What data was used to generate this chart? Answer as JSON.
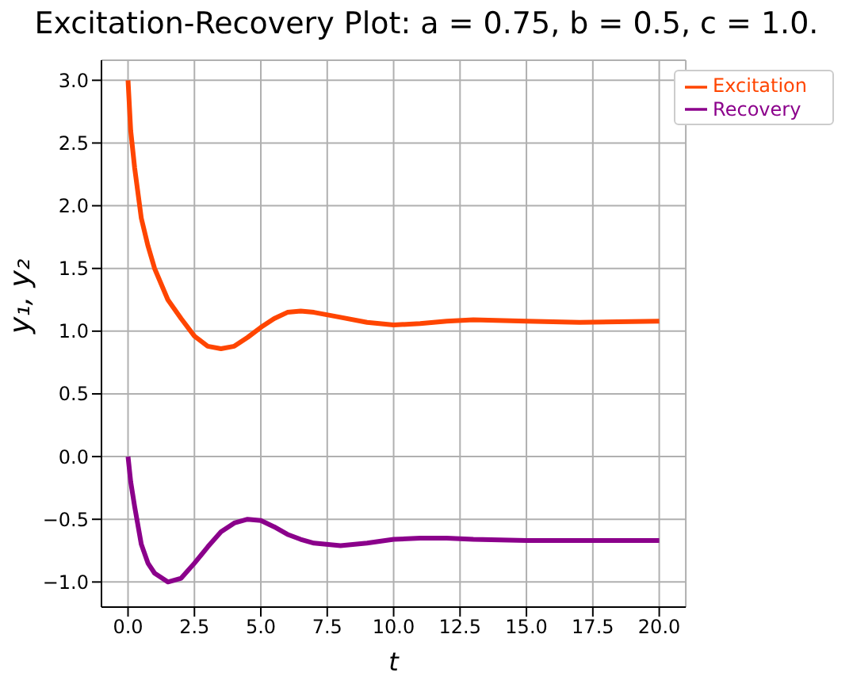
{
  "chart_data": {
    "type": "line",
    "title": "Excitation-Recovery Plot: a = 0.75, b = 0.5, c = 1.0.",
    "xlabel": "t",
    "ylabel": "y₁, y₂",
    "x": [
      0,
      0.1,
      0.25,
      0.5,
      0.75,
      1,
      1.5,
      2,
      2.5,
      3,
      3.5,
      4,
      4.5,
      5,
      5.5,
      6,
      6.5,
      7,
      8,
      9,
      10,
      11,
      12,
      13,
      15,
      17,
      20
    ],
    "series": [
      {
        "name": "Excitation",
        "color": "#ff4500",
        "values": [
          3.0,
          2.6,
          2.3,
          1.9,
          1.68,
          1.5,
          1.25,
          1.1,
          0.96,
          0.88,
          0.86,
          0.88,
          0.95,
          1.03,
          1.1,
          1.15,
          1.16,
          1.15,
          1.11,
          1.07,
          1.05,
          1.06,
          1.08,
          1.09,
          1.08,
          1.07,
          1.08
        ]
      },
      {
        "name": "Recovery",
        "color": "#8b008b",
        "values": [
          0,
          -0.2,
          -0.4,
          -0.7,
          -0.85,
          -0.93,
          -1.0,
          -0.97,
          -0.85,
          -0.72,
          -0.6,
          -0.53,
          -0.5,
          -0.51,
          -0.56,
          -0.62,
          -0.66,
          -0.69,
          -0.71,
          -0.69,
          -0.66,
          -0.65,
          -0.65,
          -0.66,
          -0.67,
          -0.67,
          -0.67
        ]
      }
    ],
    "xlim": [
      -1,
      21
    ],
    "xticks": [
      {
        "value": 0,
        "label": "0.0"
      },
      {
        "value": 2.5,
        "label": "2.5"
      },
      {
        "value": 5,
        "label": "5.0"
      },
      {
        "value": 7.5,
        "label": "7.5"
      },
      {
        "value": 10,
        "label": "10.0"
      },
      {
        "value": 12.5,
        "label": "12.5"
      },
      {
        "value": 15,
        "label": "15.0"
      },
      {
        "value": 17.5,
        "label": "17.5"
      },
      {
        "value": 20,
        "label": "20.0"
      }
    ],
    "ylim": [
      -1.2,
      3.16
    ],
    "yticks": [
      {
        "value": -1,
        "label": "−1.0"
      },
      {
        "value": -0.5,
        "label": "−0.5"
      },
      {
        "value": 0,
        "label": "0.0"
      },
      {
        "value": 0.5,
        "label": "0.5"
      },
      {
        "value": 1,
        "label": "1.0"
      },
      {
        "value": 1.5,
        "label": "1.5"
      },
      {
        "value": 2,
        "label": "2.0"
      },
      {
        "value": 2.5,
        "label": "2.5"
      },
      {
        "value": 3,
        "label": "3.0"
      }
    ],
    "grid": true,
    "legend": "top right"
  }
}
